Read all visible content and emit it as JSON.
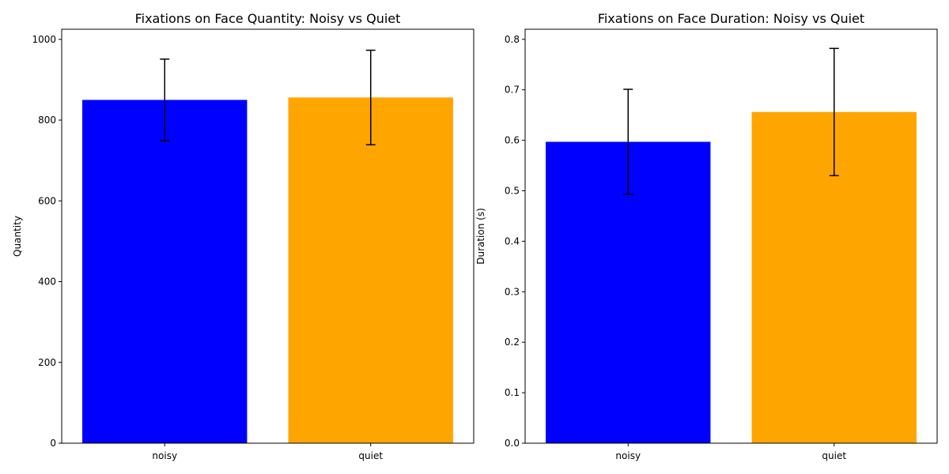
{
  "chart_data": [
    {
      "type": "bar",
      "title": "Fixations on Face Quantity: Noisy vs Quiet",
      "xlabel": "",
      "ylabel": "Quantity",
      "categories": [
        "noisy",
        "quiet"
      ],
      "values": [
        850,
        856
      ],
      "errors": [
        101,
        117
      ],
      "colors": [
        "#0000ff",
        "#ffa500"
      ],
      "ylim": [
        0,
        1025
      ],
      "yticks": [
        0,
        200,
        400,
        600,
        800,
        1000
      ],
      "ytick_labels": [
        "0",
        "200",
        "400",
        "600",
        "800",
        "1000"
      ],
      "grid": false
    },
    {
      "type": "bar",
      "title": "Fixations on Face Duration: Noisy vs Quiet",
      "xlabel": "",
      "ylabel": "Duration (s)",
      "categories": [
        "noisy",
        "quiet"
      ],
      "values": [
        0.597,
        0.656
      ],
      "errors": [
        0.104,
        0.126
      ],
      "colors": [
        "#0000ff",
        "#ffa500"
      ],
      "ylim": [
        0,
        0.82
      ],
      "yticks": [
        0,
        0.1,
        0.2,
        0.3,
        0.4,
        0.5,
        0.6,
        0.7,
        0.8
      ],
      "ytick_labels": [
        "0.0",
        "0.1",
        "0.2",
        "0.3",
        "0.4",
        "0.5",
        "0.6",
        "0.7",
        "0.8"
      ],
      "grid": false
    }
  ]
}
